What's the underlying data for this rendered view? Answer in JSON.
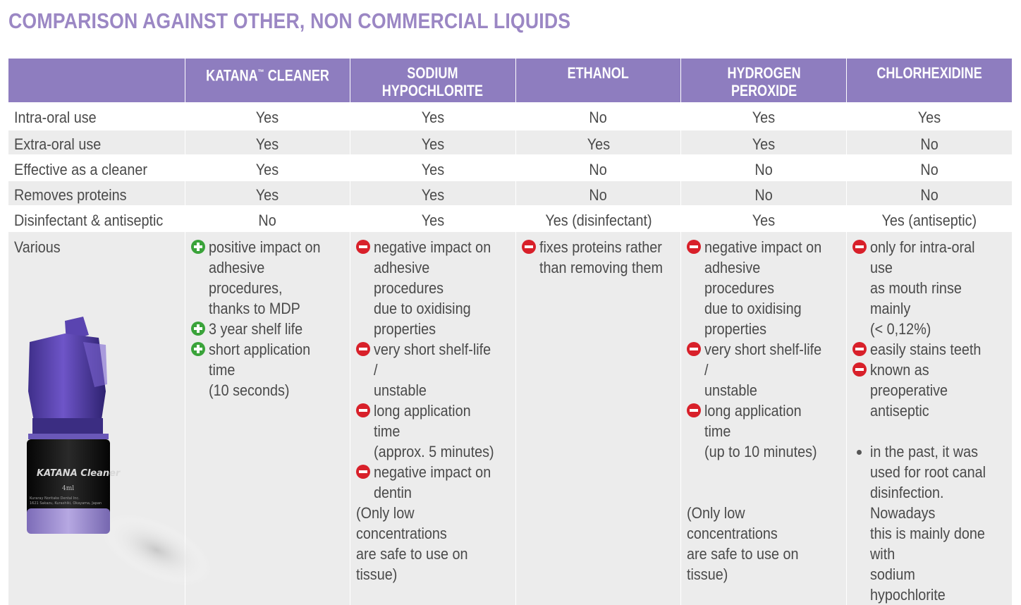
{
  "title": "COMPARISON AGAINST OTHER, NON COMMERCIAL LIQUIDS",
  "headers": [
    "",
    "KATANA™ CLEANER",
    "SODIUM\nHYPOCHLORITE",
    "ETHANOL",
    "HYDROGEN\nPEROXIDE",
    "CHLORHEXIDINE"
  ],
  "header_lines": {
    "katana": "KATANA",
    "katana_tm": "™",
    "katana_rest": " CLEANER",
    "sodium_1": "SODIUM",
    "sodium_2": "HYPOCHLORITE",
    "ethanol": "ETHANOL",
    "hydrogen_1": "HYDROGEN",
    "hydrogen_2": "PEROXIDE",
    "chlorhex": "CHLORHEXIDINE"
  },
  "rows": [
    {
      "label": "Intra-oral use",
      "values": [
        "Yes",
        "Yes",
        "No",
        "Yes",
        "Yes"
      ]
    },
    {
      "label": "Extra-oral use",
      "values": [
        "Yes",
        "Yes",
        "Yes",
        "Yes",
        "No"
      ]
    },
    {
      "label": "Effective as a cleaner",
      "values": [
        "Yes",
        "Yes",
        "No",
        "No",
        "No"
      ]
    },
    {
      "label": "Removes proteins",
      "values": [
        "Yes",
        "Yes",
        "No",
        "No",
        "No"
      ]
    },
    {
      "label": "Disinfectant & antiseptic",
      "values": [
        "No",
        "Yes",
        "Yes (disinfectant)",
        "Yes",
        "Yes (antiseptic)"
      ]
    }
  ],
  "various": {
    "label": "Various",
    "katana": [
      {
        "icon": "plus",
        "text": "positive impact on\nadhesive procedures,\nthanks to MDP"
      },
      {
        "icon": "plus",
        "text": "3 year shelf life"
      },
      {
        "icon": "plus",
        "text": "short application time\n(10 seconds)"
      }
    ],
    "sodium": [
      {
        "icon": "minus",
        "text": "negative impact on\nadhesive procedures\ndue to oxidising\nproperties"
      },
      {
        "icon": "minus",
        "text": "very short shelf-life /\nunstable"
      },
      {
        "icon": "minus",
        "text": "long application time\n(approx. 5 minutes)"
      },
      {
        "icon": "minus",
        "text": "negative impact on\ndentin"
      }
    ],
    "sodium_note": "(Only low concentrations\nare safe to use on tissue)",
    "ethanol": [
      {
        "icon": "minus",
        "text": "fixes proteins rather\nthan removing them"
      }
    ],
    "hydrogen": [
      {
        "icon": "minus",
        "text": "negative impact on\nadhesive procedures\ndue to oxidising\nproperties"
      },
      {
        "icon": "minus",
        "text": "very short shelf-life /\nunstable"
      },
      {
        "icon": "minus",
        "text": "long application time\n(up to 10 minutes)"
      }
    ],
    "hydrogen_note": "(Only low concentrations\nare safe to use on tissue)",
    "chlorhex": [
      {
        "icon": "minus",
        "text": "only for intra-oral use\nas mouth rinse mainly\n(< 0,12%)"
      },
      {
        "icon": "minus",
        "text": "easily stains teeth"
      },
      {
        "icon": "minus",
        "text": "known as preoperative\nantiseptic"
      }
    ],
    "chlorhex_bullet": "in the past, it was\nused for root canal\ndisinfection. Nowadays\nthis is mainly done with\nsodium hypochlorite"
  },
  "bottle": {
    "brand": "KATANA Cleaner",
    "volume": "4ml",
    "maker": "Kuraray Noritake Dental Inc.",
    "address": "1621 Sakazu, Kurashiki, Okayama, Japan"
  },
  "colors": {
    "title": "#9b87c4",
    "header_bg": "#8e7dbf",
    "row_alt": "#ececec",
    "plus": "#3aa33a",
    "minus": "#d8202a"
  }
}
